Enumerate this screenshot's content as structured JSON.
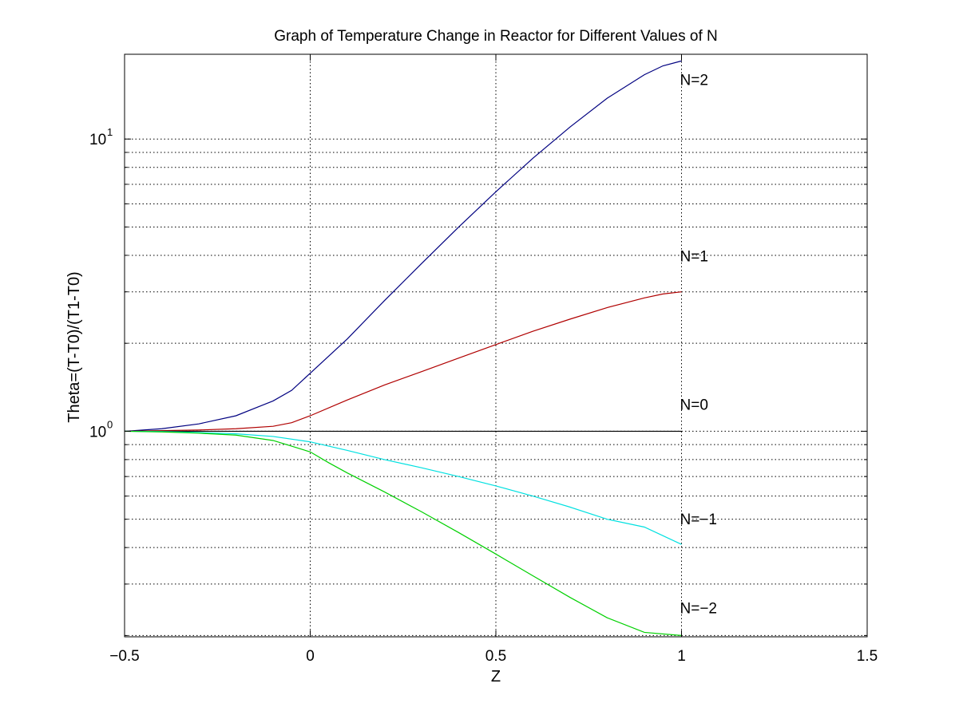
{
  "chart_data": {
    "type": "line",
    "title": "Graph of Temperature Change in Reactor for Different Values of N",
    "xlabel": "Z",
    "ylabel": "Theta=(T-T0)/(T1-T0)",
    "xlim": [
      -0.5,
      1.5
    ],
    "ylim": [
      0.198,
      19.5
    ],
    "yscale": "log",
    "grid": true,
    "x_ticks": [
      "-0.5",
      "0",
      "0.5",
      "1",
      "1.5"
    ],
    "y_ticks": [
      {
        "base": "10",
        "exp": "0",
        "value": 1
      },
      {
        "base": "10",
        "exp": "1",
        "value": 10
      }
    ],
    "series": [
      {
        "name": "N=2",
        "color": "#000080",
        "x": [
          -0.5,
          -0.4,
          -0.3,
          -0.2,
          -0.1,
          -0.05,
          0,
          0.1,
          0.2,
          0.3,
          0.4,
          0.5,
          0.6,
          0.7,
          0.8,
          0.9,
          0.95,
          1.0
        ],
        "y": [
          1.0,
          1.02,
          1.06,
          1.13,
          1.27,
          1.38,
          1.58,
          2.07,
          2.8,
          3.75,
          5.0,
          6.6,
          8.6,
          11.0,
          13.8,
          16.6,
          17.8,
          18.5
        ]
      },
      {
        "name": "N=1",
        "color": "#b00000",
        "x": [
          -0.5,
          -0.4,
          -0.3,
          -0.2,
          -0.1,
          -0.05,
          0,
          0.1,
          0.2,
          0.3,
          0.4,
          0.5,
          0.6,
          0.7,
          0.8,
          0.9,
          0.95,
          1.0
        ],
        "y": [
          1.0,
          1.005,
          1.01,
          1.02,
          1.04,
          1.07,
          1.13,
          1.28,
          1.44,
          1.6,
          1.78,
          1.98,
          2.2,
          2.42,
          2.65,
          2.86,
          2.95,
          3.0
        ]
      },
      {
        "name": "N=0",
        "color": "#000000",
        "x": [
          -0.5,
          1.0
        ],
        "y": [
          1.0,
          1.0
        ]
      },
      {
        "name": "N=-1",
        "color": "#00e0e0",
        "x": [
          -0.5,
          -0.4,
          -0.3,
          -0.2,
          -0.1,
          0,
          0.1,
          0.2,
          0.3,
          0.4,
          0.5,
          0.6,
          0.7,
          0.8,
          0.9,
          1.0
        ],
        "y": [
          1.0,
          0.998,
          0.99,
          0.98,
          0.96,
          0.92,
          0.86,
          0.8,
          0.75,
          0.7,
          0.65,
          0.6,
          0.55,
          0.5,
          0.47,
          0.41
        ]
      },
      {
        "name": "N=-2",
        "color": "#00d000",
        "x": [
          -0.5,
          -0.4,
          -0.3,
          -0.2,
          -0.1,
          0,
          0.05,
          0.1,
          0.2,
          0.3,
          0.4,
          0.5,
          0.6,
          0.7,
          0.8,
          0.9,
          1.0
        ],
        "y": [
          1.0,
          0.995,
          0.985,
          0.97,
          0.93,
          0.85,
          0.78,
          0.72,
          0.62,
          0.53,
          0.45,
          0.38,
          0.32,
          0.27,
          0.23,
          0.205,
          0.2
        ]
      }
    ]
  }
}
